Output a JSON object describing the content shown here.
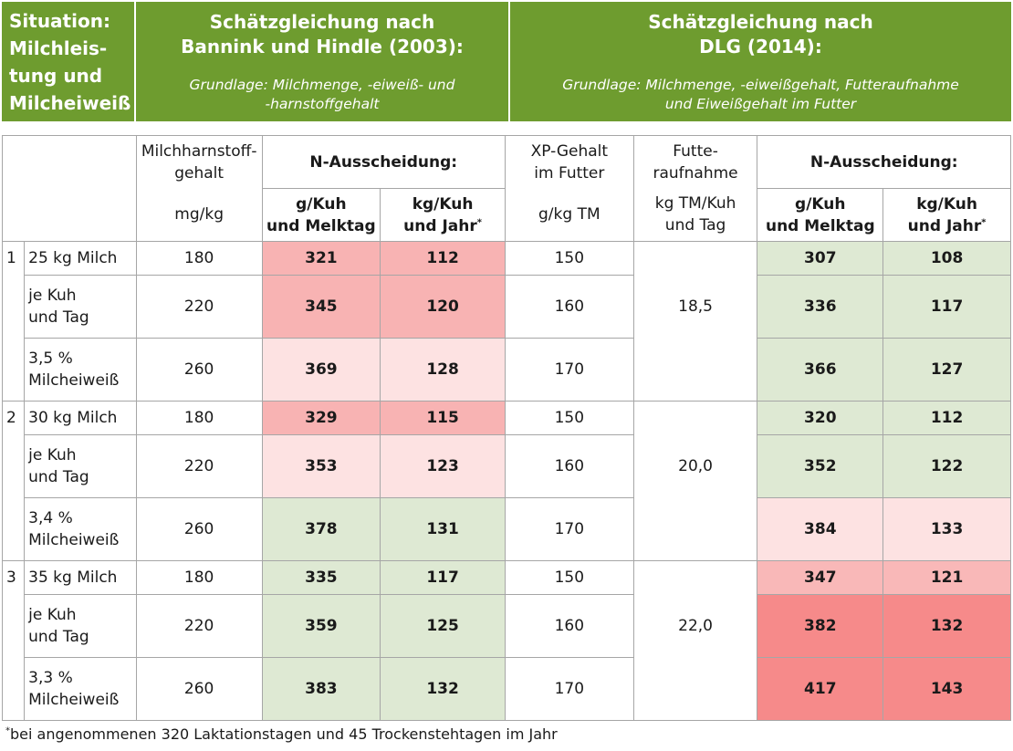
{
  "header": {
    "situation": [
      "Situation:",
      "Milchleis-",
      "tung und",
      "Milcheiweiß"
    ],
    "bannink_title": [
      "Schätzgleichung nach",
      "Bannink und Hindle (2003):"
    ],
    "bannink_sub": [
      "Grundlage: Milchmenge, -eiweiß- und",
      "-harnstoffgehalt"
    ],
    "dlg_title": [
      "Schätzgleichung nach",
      "DLG (2014):"
    ],
    "dlg_sub": [
      "Grundlage: Milchmenge, -eiweißgehalt, Futteraufnahme",
      "und Eiweißgehalt im Futter"
    ]
  },
  "columns": {
    "harnstoff": [
      "Milchharnstoff-",
      "gehalt"
    ],
    "n_aus": "N-Ausscheidung:",
    "xp": [
      "XP-Gehalt",
      "im Futter"
    ],
    "futter": [
      "Futte-",
      "raufnahme"
    ],
    "unit_harnstoff": "mg/kg",
    "g_kuh": [
      "g/Kuh",
      "und Melktag"
    ],
    "kg_kuh": [
      "kg/Kuh",
      "und Jahr"
    ],
    "asterisk": "*",
    "unit_xp": "g/kg TM",
    "unit_futter": [
      "kg TM/Kuh",
      "und Tag"
    ]
  },
  "rows": [
    {
      "num": "1",
      "label": [
        "25 kg Milch"
      ],
      "harnstoff": "180",
      "b_g": "321",
      "b_kg": "112",
      "xp": "150",
      "futter": "",
      "d_g": "307",
      "d_kg": "108",
      "bc": "#f8b3b3",
      "dc": "#dee9d3"
    },
    {
      "num": "",
      "label": [
        "je Kuh",
        "und Tag"
      ],
      "harnstoff": "220",
      "b_g": "345",
      "b_kg": "120",
      "xp": "160",
      "futter": "18,5",
      "d_g": "336",
      "d_kg": "117",
      "bc": "#f8b3b3",
      "dc": "#dee9d3"
    },
    {
      "num": "",
      "label": [
        "3,5 %",
        "Milcheiweiß"
      ],
      "harnstoff": "260",
      "b_g": "369",
      "b_kg": "128",
      "xp": "170",
      "futter": "",
      "d_g": "366",
      "d_kg": "127",
      "bc": "#fde2e2",
      "dc": "#dee9d3"
    },
    {
      "num": "2",
      "label": [
        "30 kg Milch"
      ],
      "harnstoff": "180",
      "b_g": "329",
      "b_kg": "115",
      "xp": "150",
      "futter": "",
      "d_g": "320",
      "d_kg": "112",
      "bc": "#f8b3b3",
      "dc": "#dee9d3"
    },
    {
      "num": "",
      "label": [
        "je Kuh",
        "und Tag"
      ],
      "harnstoff": "220",
      "b_g": "353",
      "b_kg": "123",
      "xp": "160",
      "futter": "20,0",
      "d_g": "352",
      "d_kg": "122",
      "bc": "#fde2e2",
      "dc": "#dee9d3"
    },
    {
      "num": "",
      "label": [
        "3,4 %",
        "Milcheiweiß"
      ],
      "harnstoff": "260",
      "b_g": "378",
      "b_kg": "131",
      "xp": "170",
      "futter": "",
      "d_g": "384",
      "d_kg": "133",
      "bc": "#dee9d3",
      "dc": "#fde2e2"
    },
    {
      "num": "3",
      "label": [
        "35 kg Milch"
      ],
      "harnstoff": "180",
      "b_g": "335",
      "b_kg": "117",
      "xp": "150",
      "futter": "",
      "d_g": "347",
      "d_kg": "121",
      "bc": "#dee9d3",
      "dc": "#f9b8b8"
    },
    {
      "num": "",
      "label": [
        "je Kuh",
        "und Tag"
      ],
      "harnstoff": "220",
      "b_g": "359",
      "b_kg": "125",
      "xp": "160",
      "futter": "22,0",
      "d_g": "382",
      "d_kg": "132",
      "bc": "#dee9d3",
      "dc": "#f68a8a"
    },
    {
      "num": "",
      "label": [
        "3,3 %",
        "Milcheiweiß"
      ],
      "harnstoff": "260",
      "b_g": "383",
      "b_kg": "132",
      "xp": "170",
      "futter": "",
      "d_g": "417",
      "d_kg": "143",
      "bc": "#dee9d3",
      "dc": "#f68a8a"
    }
  ],
  "footnote": {
    "mark": "*",
    "text": "bei angenommenen 320 Laktationstagen und 45 Trockenstehtagen im Jahr"
  }
}
